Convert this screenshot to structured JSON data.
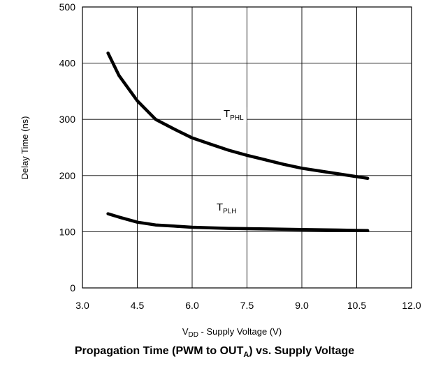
{
  "chart_data": {
    "type": "line",
    "title": "Propagation Time (PWM to OUT_A) vs. Supply Voltage",
    "title_parts": {
      "main": "Propagation Time (PWM to OUT",
      "sub": "A",
      "rest": ") vs. Supply Voltage"
    },
    "xlabel": "V_DD - Supply Voltage (V)",
    "xlabel_parts": {
      "main": "V",
      "sub": "DD",
      "rest": " - Supply Voltage (V)"
    },
    "ylabel": "Delay Time (ns)",
    "xlim": [
      3.0,
      12.0
    ],
    "ylim": [
      0,
      500
    ],
    "xticks": [
      "3.0",
      "4.5",
      "6.0",
      "7.5",
      "9.0",
      "10.5",
      "12.0"
    ],
    "yticks": [
      "0",
      "100",
      "200",
      "300",
      "400",
      "500"
    ],
    "grid": true,
    "series": [
      {
        "name": "T_PHL",
        "label_parts": {
          "main": "T",
          "sub": "PHL"
        },
        "x": [
          3.7,
          4.0,
          4.5,
          5.0,
          5.5,
          6.0,
          6.5,
          7.0,
          7.5,
          8.0,
          8.5,
          9.0,
          9.5,
          10.0,
          10.5,
          10.8
        ],
        "y": [
          418,
          378,
          333,
          300,
          283,
          267,
          256,
          245,
          236,
          228,
          220,
          213,
          208,
          203,
          198,
          195
        ]
      },
      {
        "name": "T_PLH",
        "label_parts": {
          "main": "T",
          "sub": "PLH"
        },
        "x": [
          3.7,
          4.0,
          4.5,
          5.0,
          5.5,
          6.0,
          7.0,
          8.0,
          9.0,
          10.0,
          10.8
        ],
        "y": [
          132,
          126,
          117,
          112,
          110,
          108,
          106,
          105,
          104,
          103,
          102
        ]
      }
    ],
    "colors": {
      "line": "#000000",
      "grid": "#000000",
      "background": "#ffffff"
    }
  }
}
